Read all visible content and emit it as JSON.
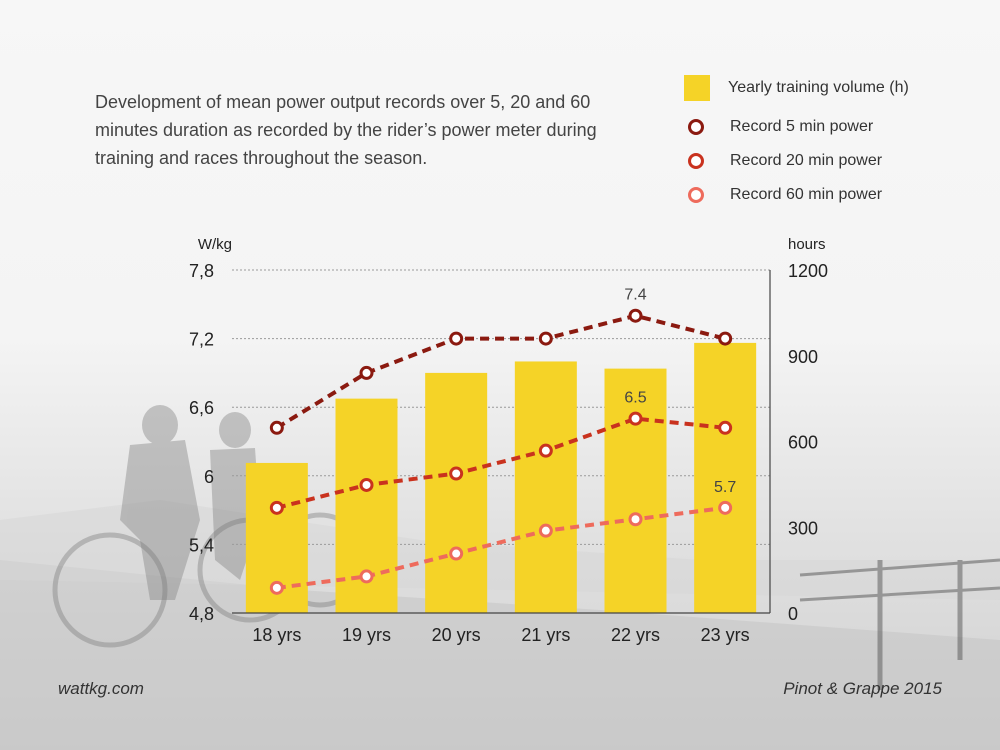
{
  "description": "Development of mean power output records over 5, 20 and 60 minutes duration as recorded by the rider’s power meter during training and races throughout the season.",
  "footer": {
    "left": "wattkg.com",
    "right": "Pinot & Grappe 2015"
  },
  "legend": [
    {
      "label": "Yearly training volume (h)",
      "kind": "bar",
      "color": "#f5d327"
    },
    {
      "label": "Record 5 min power",
      "kind": "ring",
      "color": "#8b1a10"
    },
    {
      "label": "Record 20 min power",
      "kind": "ring",
      "color": "#c9321e"
    },
    {
      "label": "Record 60 min power",
      "kind": "ring",
      "color": "#ee6b5c"
    }
  ],
  "chart_data": {
    "type": "bar",
    "categories": [
      "18 yrs",
      "19 yrs",
      "20 yrs",
      "21 yrs",
      "22 yrs",
      "23 yrs"
    ],
    "left_axis": {
      "unit_label": "W/kg",
      "ticks": [
        "7,8",
        "7,2",
        "6,6",
        "6",
        "5,4",
        "4,8"
      ],
      "tick_values": [
        7.8,
        7.2,
        6.6,
        6.0,
        5.4,
        4.8
      ],
      "ylim": [
        4.8,
        7.8
      ]
    },
    "right_axis": {
      "unit_label": "hours",
      "ticks": [
        "1200",
        "900",
        "600",
        "300",
        "0"
      ],
      "tick_values": [
        1200,
        900,
        600,
        300,
        0
      ],
      "ylim": [
        0,
        1200
      ]
    },
    "grid": true,
    "bars": {
      "name": "Yearly training volume (h)",
      "color": "#f5d327",
      "axis": "right",
      "values": [
        525,
        750,
        840,
        880,
        855,
        945
      ]
    },
    "series": [
      {
        "name": "Record 5 min power",
        "color": "#8b1a10",
        "axis": "left",
        "values": [
          6.42,
          6.9,
          7.2,
          7.2,
          7.4,
          7.2
        ],
        "labels": [
          "",
          "",
          "",
          "",
          "7.4",
          ""
        ]
      },
      {
        "name": "Record 20 min power",
        "color": "#c9321e",
        "axis": "left",
        "values": [
          5.72,
          5.92,
          6.02,
          6.22,
          6.5,
          6.42
        ],
        "labels": [
          "",
          "",
          "",
          "",
          "6.5",
          ""
        ]
      },
      {
        "name": "Record 60 min power",
        "color": "#ee6b5c",
        "axis": "left",
        "values": [
          5.02,
          5.12,
          5.32,
          5.52,
          5.62,
          5.72
        ],
        "labels": [
          "",
          "",
          "",
          "",
          "",
          "5.7"
        ]
      }
    ]
  }
}
